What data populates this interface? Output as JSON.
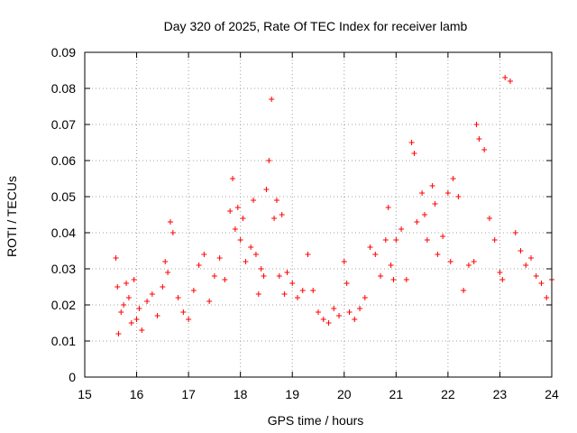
{
  "chart_data": {
    "type": "scatter",
    "title": "Day 320 of 2025, Rate Of TEC Index for receiver lamb",
    "xlabel": "GPS time / hours",
    "ylabel": "ROTI / TECUs",
    "xlim": [
      15,
      24
    ],
    "ylim": [
      0,
      0.09
    ],
    "xticks": [
      15,
      16,
      17,
      18,
      19,
      20,
      21,
      22,
      23,
      24
    ],
    "yticks": [
      0,
      0.01,
      0.02,
      0.03,
      0.04,
      0.05,
      0.06,
      0.07,
      0.08,
      0.09
    ],
    "xtick_labels": [
      "15",
      "16",
      "17",
      "18",
      "19",
      "20",
      "21",
      "22",
      "23",
      "24"
    ],
    "ytick_labels": [
      "0",
      "0.01",
      "0.02",
      "0.03",
      "0.04",
      "0.05",
      "0.06",
      "0.07",
      "0.08",
      "0.09"
    ],
    "grid": true,
    "marker": "+",
    "marker_color": "#ff0000",
    "series": [
      {
        "name": "ROTI",
        "color": "#ff0000",
        "x": [
          15.6,
          15.63,
          15.65,
          15.7,
          15.75,
          15.8,
          15.85,
          15.9,
          15.95,
          16.0,
          16.05,
          16.1,
          16.2,
          16.3,
          16.4,
          16.5,
          16.55,
          16.6,
          16.65,
          16.7,
          16.8,
          16.9,
          17.0,
          17.1,
          17.2,
          17.3,
          17.4,
          17.5,
          17.6,
          17.7,
          17.8,
          17.85,
          17.9,
          17.95,
          18.0,
          18.05,
          18.1,
          18.2,
          18.25,
          18.3,
          18.35,
          18.4,
          18.45,
          18.5,
          18.55,
          18.6,
          18.65,
          18.7,
          18.75,
          18.8,
          18.85,
          18.9,
          19.0,
          19.1,
          19.2,
          19.3,
          19.4,
          19.5,
          19.6,
          19.7,
          19.8,
          19.9,
          20.0,
          20.05,
          20.1,
          20.2,
          20.3,
          20.4,
          20.5,
          20.6,
          20.7,
          20.8,
          20.85,
          20.9,
          20.95,
          21.0,
          21.1,
          21.2,
          21.3,
          21.35,
          21.4,
          21.5,
          21.55,
          21.6,
          21.7,
          21.75,
          21.8,
          21.9,
          22.0,
          22.05,
          22.1,
          22.2,
          22.3,
          22.4,
          22.5,
          22.55,
          22.6,
          22.7,
          22.8,
          22.9,
          23.0,
          23.05,
          23.1,
          23.2,
          23.3,
          23.4,
          23.5,
          23.6,
          23.7,
          23.8,
          23.9,
          24.0
        ],
        "y": [
          0.033,
          0.025,
          0.012,
          0.018,
          0.02,
          0.026,
          0.022,
          0.015,
          0.027,
          0.016,
          0.019,
          0.013,
          0.021,
          0.023,
          0.017,
          0.025,
          0.032,
          0.029,
          0.043,
          0.04,
          0.022,
          0.018,
          0.016,
          0.024,
          0.031,
          0.034,
          0.021,
          0.028,
          0.033,
          0.027,
          0.046,
          0.055,
          0.041,
          0.047,
          0.038,
          0.044,
          0.032,
          0.036,
          0.049,
          0.034,
          0.023,
          0.03,
          0.028,
          0.052,
          0.06,
          0.077,
          0.044,
          0.049,
          0.028,
          0.045,
          0.023,
          0.029,
          0.026,
          0.022,
          0.024,
          0.034,
          0.024,
          0.018,
          0.016,
          0.015,
          0.019,
          0.017,
          0.032,
          0.026,
          0.018,
          0.016,
          0.019,
          0.022,
          0.036,
          0.034,
          0.028,
          0.038,
          0.047,
          0.031,
          0.027,
          0.038,
          0.041,
          0.027,
          0.065,
          0.062,
          0.043,
          0.051,
          0.045,
          0.038,
          0.053,
          0.048,
          0.034,
          0.039,
          0.051,
          0.032,
          0.055,
          0.05,
          0.024,
          0.031,
          0.032,
          0.07,
          0.066,
          0.063,
          0.044,
          0.038,
          0.029,
          0.027,
          0.083,
          0.082,
          0.04,
          0.035,
          0.031,
          0.033,
          0.028,
          0.026,
          0.022,
          0.027
        ]
      }
    ]
  }
}
